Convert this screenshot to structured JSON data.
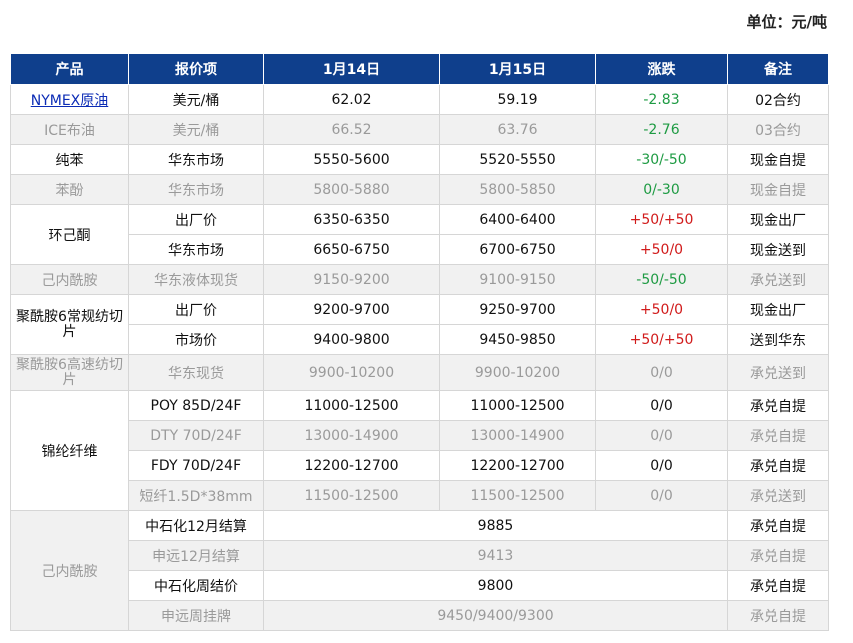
{
  "unit_label": "单位：元/吨",
  "headers": [
    "产品",
    "报价项",
    "1月14日",
    "1月15日",
    "涨跌",
    "备注"
  ],
  "rows": [
    {
      "product": "NYMEX原油",
      "item": "美元/桶",
      "d1": "62.02",
      "d2": "59.19",
      "change": "-2.83",
      "note": "02合约"
    },
    {
      "product": "ICE布油",
      "item": "美元/桶",
      "d1": "66.52",
      "d2": "63.76",
      "change": "-2.76",
      "note": "03合约"
    },
    {
      "product": "纯苯",
      "item": "华东市场",
      "d1": "5550-5600",
      "d2": "5520-5550",
      "change": "-30/-50",
      "note": "现金自提"
    },
    {
      "product": "苯酚",
      "item": "华东市场",
      "d1": "5800-5880",
      "d2": "5800-5850",
      "change": "0/-30",
      "note": "现金自提"
    },
    {
      "product": "环己酮",
      "item": "出厂价",
      "d1": "6350-6350",
      "d2": "6400-6400",
      "change": "+50/+50",
      "note": "现金出厂"
    },
    {
      "product": "",
      "item": "华东市场",
      "d1": "6650-6750",
      "d2": "6700-6750",
      "change": "+50/0",
      "note": "现金送到"
    },
    {
      "product": "己内酰胺",
      "item": "华东液体现货",
      "d1": "9150-9200",
      "d2": "9100-9150",
      "change": "-50/-50",
      "note": "承兑送到"
    },
    {
      "product": "聚酰胺6常规纺切片",
      "item": "出厂价",
      "d1": "9200-9700",
      "d2": "9250-9700",
      "change": "+50/0",
      "note": "现金出厂"
    },
    {
      "product": "",
      "item": "市场价",
      "d1": "9400-9800",
      "d2": "9450-9850",
      "change": "+50/+50",
      "note": "送到华东"
    },
    {
      "product": "聚酰胺6高速纺切片",
      "item": "华东现货",
      "d1": "9900-10200",
      "d2": "9900-10200",
      "change": "0/0",
      "note": "承兑送到"
    },
    {
      "product": "锦纶纤维",
      "item": "POY 85D/24F",
      "d1": "11000-12500",
      "d2": "11000-12500",
      "change": "0/0",
      "note": "承兑自提"
    },
    {
      "product": "",
      "item": "DTY 70D/24F",
      "d1": "13000-14900",
      "d2": "13000-14900",
      "change": "0/0",
      "note": "承兑自提"
    },
    {
      "product": "",
      "item": "FDY 70D/24F",
      "d1": "12200-12700",
      "d2": "12200-12700",
      "change": "0/0",
      "note": "承兑自提"
    },
    {
      "product": "",
      "item": "短纤1.5D*38mm",
      "d1": "11500-12500",
      "d2": "11500-12500",
      "change": "0/0",
      "note": "承兑送到"
    },
    {
      "product": "己内酰胺",
      "item": "中石化12月结算",
      "value": "9885",
      "note": "承兑自提"
    },
    {
      "product": "",
      "item": "申远12月结算",
      "value": "9413",
      "note": "承兑自提"
    },
    {
      "product": "",
      "item": "中石化周结价",
      "value": "9800",
      "note": "承兑自提"
    },
    {
      "product": "",
      "item": "申远周挂牌",
      "value": "9450/9400/9300",
      "note": "承兑自提"
    }
  ],
  "colors": {
    "header_bg": "#0f3f8c",
    "up": "#d11b1b",
    "down": "#1e9b43",
    "link": "#0b2bb5"
  }
}
